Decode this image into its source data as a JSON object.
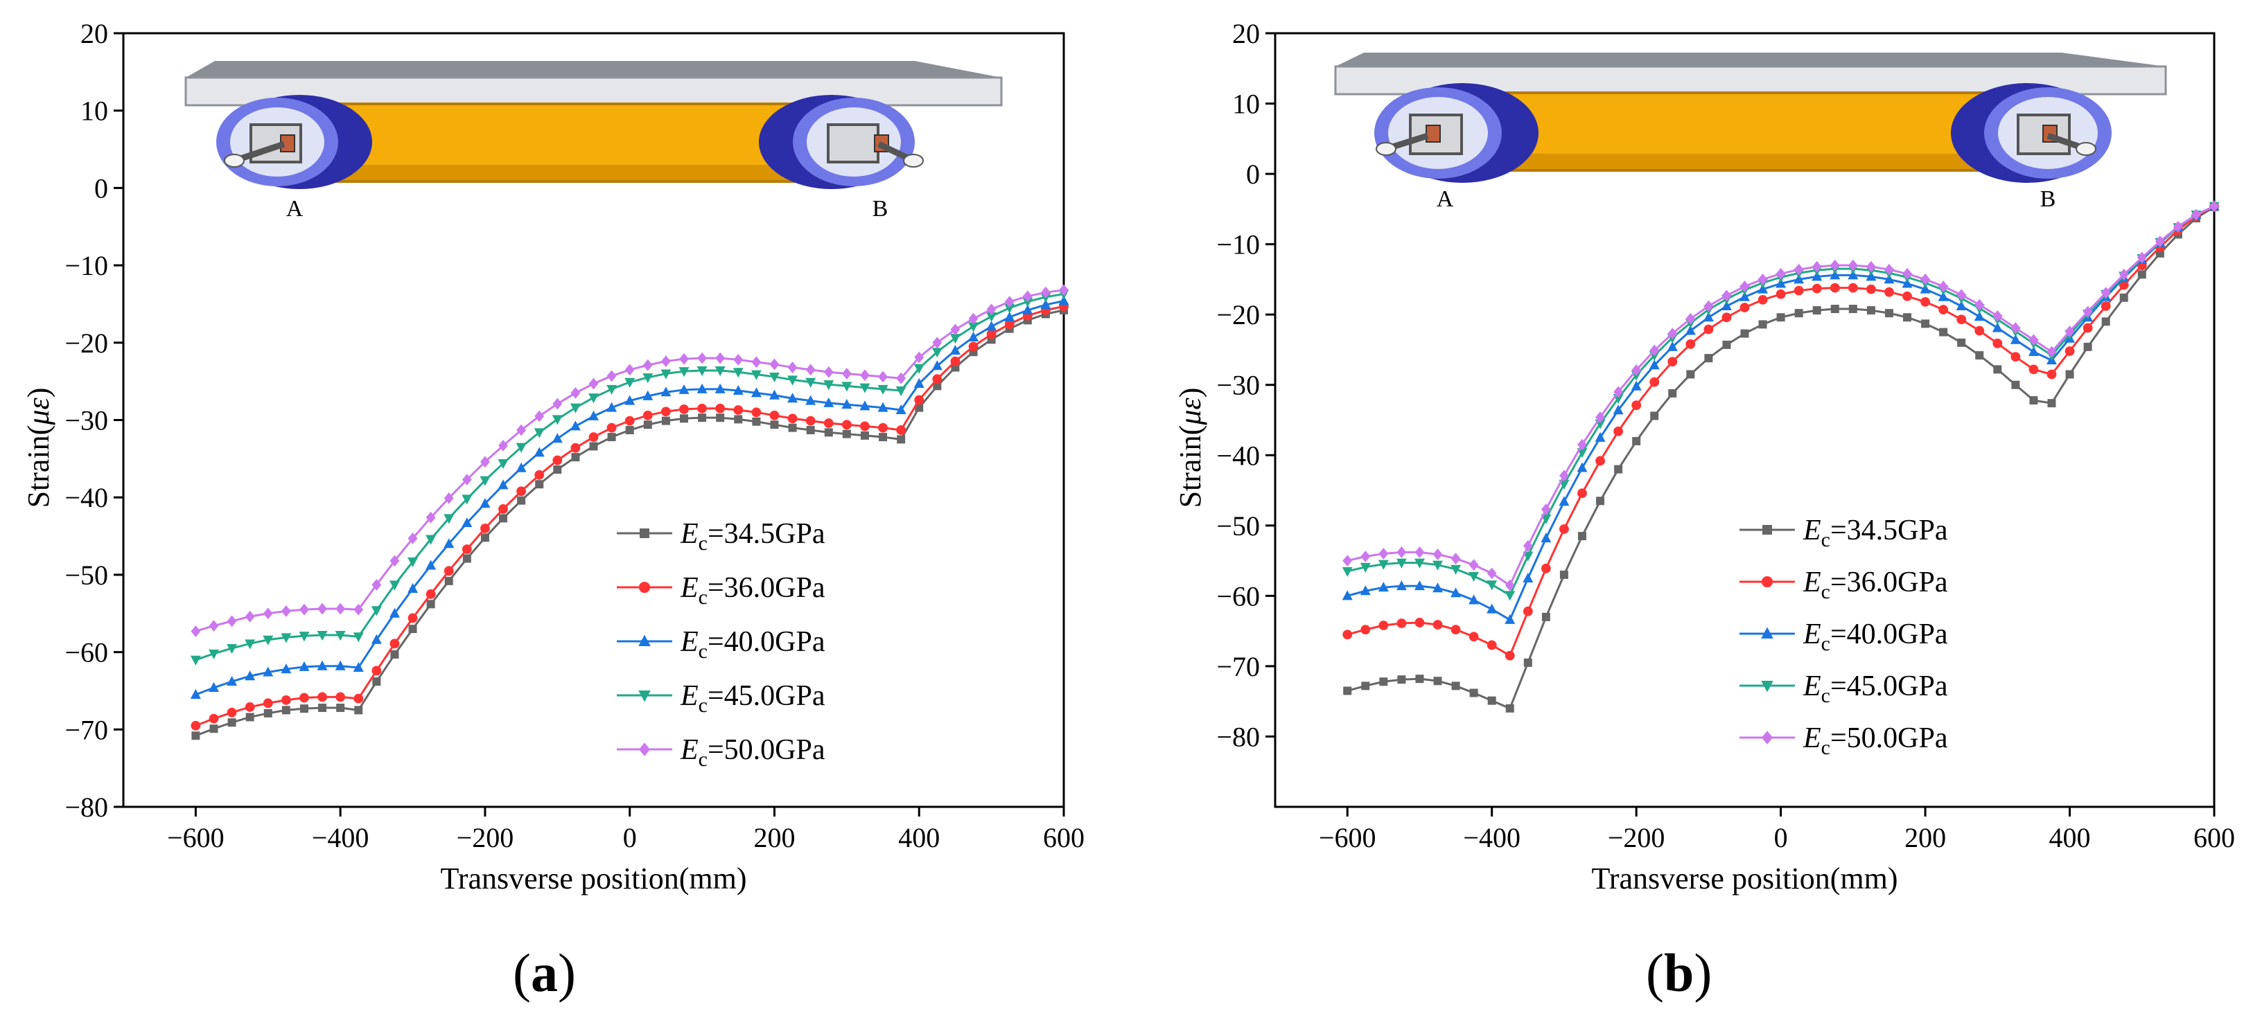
{
  "figure": {
    "panel_labels": [
      {
        "open": "(",
        "letter": "a",
        "close": ")"
      },
      {
        "open": "(",
        "letter": "b",
        "close": ")"
      }
    ],
    "diagram_labels": {
      "left_support": "A",
      "right_support": "B"
    }
  },
  "chart_data": [
    {
      "type": "line",
      "panel": "a",
      "xlabel": "Transverse position(mm)",
      "ylabel": {
        "prefix": "Strain(",
        "symbol": "με",
        "suffix": ")"
      },
      "xlim": [
        -700,
        600
      ],
      "ylim": [
        -80,
        20
      ],
      "xticks": [
        -600,
        -400,
        -200,
        0,
        200,
        400,
        600
      ],
      "yticks": [
        20,
        10,
        0,
        -10,
        -20,
        -30,
        -40,
        -50,
        -60,
        -70,
        -80
      ],
      "xtick_labels": [
        "−600",
        "−400",
        "−200",
        "0",
        "200",
        "400",
        "600"
      ],
      "ytick_labels": [
        "20",
        "10",
        "0",
        "−10",
        "−20",
        "−30",
        "−40",
        "−50",
        "−60",
        "−70",
        "−80"
      ],
      "legend_position": "lower-right",
      "x": [
        -600,
        -575,
        -550,
        -525,
        -500,
        -475,
        -450,
        -425,
        -400,
        -375,
        -350,
        -325,
        -300,
        -275,
        -250,
        -225,
        -200,
        -175,
        -150,
        -125,
        -100,
        -75,
        -50,
        -25,
        0,
        25,
        50,
        75,
        100,
        125,
        150,
        175,
        200,
        225,
        250,
        275,
        300,
        325,
        350,
        375,
        400,
        425,
        450,
        475,
        500,
        525,
        550,
        575,
        600
      ],
      "series": [
        {
          "name": "E_c=34.5GPa",
          "label_sym": "E",
          "label_sub": "c",
          "label_rest": "=34.5GPa",
          "color": "#666666",
          "marker": "square",
          "values": [
            -70.8,
            -69.9,
            -69.1,
            -68.4,
            -67.9,
            -67.5,
            -67.3,
            -67.2,
            -67.2,
            -67.5,
            -63.8,
            -60.3,
            -57.0,
            -53.8,
            -50.8,
            -47.9,
            -45.2,
            -42.7,
            -40.4,
            -38.3,
            -36.4,
            -34.8,
            -33.4,
            -32.2,
            -31.3,
            -30.6,
            -30.1,
            -29.8,
            -29.7,
            -29.7,
            -29.9,
            -30.2,
            -30.6,
            -31.0,
            -31.3,
            -31.6,
            -31.8,
            -32.0,
            -32.2,
            -32.5,
            -28.4,
            -25.6,
            -23.2,
            -21.2,
            -19.6,
            -18.2,
            -17.1,
            -16.3,
            -15.8
          ]
        },
        {
          "name": "E_c=36.0GPa",
          "label_sym": "E",
          "label_sub": "c",
          "label_rest": "=36.0GPa",
          "color": "#ff3333",
          "marker": "circle",
          "values": [
            -69.5,
            -68.6,
            -67.8,
            -67.1,
            -66.6,
            -66.2,
            -65.9,
            -65.8,
            -65.8,
            -66.0,
            -62.4,
            -58.9,
            -55.6,
            -52.5,
            -49.5,
            -46.7,
            -44.0,
            -41.5,
            -39.2,
            -37.1,
            -35.2,
            -33.6,
            -32.2,
            -31.0,
            -30.1,
            -29.4,
            -28.9,
            -28.6,
            -28.5,
            -28.5,
            -28.7,
            -29.0,
            -29.4,
            -29.8,
            -30.1,
            -30.4,
            -30.6,
            -30.8,
            -31.0,
            -31.3,
            -27.4,
            -24.7,
            -22.4,
            -20.5,
            -18.9,
            -17.6,
            -16.5,
            -15.8,
            -15.3
          ]
        },
        {
          "name": "E_c=40.0GPa",
          "label_sym": "E",
          "label_sub": "c",
          "label_rest": "=40.0GPa",
          "color": "#1a75e0",
          "marker": "triangle-up",
          "values": [
            -65.5,
            -64.6,
            -63.8,
            -63.1,
            -62.6,
            -62.2,
            -61.9,
            -61.8,
            -61.8,
            -62.0,
            -58.4,
            -55.0,
            -51.8,
            -48.8,
            -46.0,
            -43.3,
            -40.8,
            -38.4,
            -36.2,
            -34.2,
            -32.4,
            -30.8,
            -29.5,
            -28.4,
            -27.5,
            -26.9,
            -26.4,
            -26.1,
            -26.0,
            -26.0,
            -26.2,
            -26.5,
            -26.8,
            -27.2,
            -27.5,
            -27.8,
            -28.0,
            -28.2,
            -28.4,
            -28.7,
            -25.3,
            -23.0,
            -21.0,
            -19.3,
            -17.9,
            -16.7,
            -15.8,
            -15.1,
            -14.6
          ]
        },
        {
          "name": "E_c=45.0GPa",
          "label_sym": "E",
          "label_sub": "c",
          "label_rest": "=45.0GPa",
          "color": "#22aa88",
          "marker": "triangle-down",
          "values": [
            -61.0,
            -60.2,
            -59.5,
            -58.9,
            -58.4,
            -58.1,
            -57.9,
            -57.8,
            -57.8,
            -58.0,
            -54.6,
            -51.3,
            -48.3,
            -45.4,
            -42.7,
            -40.2,
            -37.8,
            -35.6,
            -33.5,
            -31.6,
            -29.9,
            -28.4,
            -27.1,
            -26.0,
            -25.1,
            -24.5,
            -24.0,
            -23.7,
            -23.6,
            -23.6,
            -23.8,
            -24.1,
            -24.4,
            -24.8,
            -25.1,
            -25.4,
            -25.6,
            -25.8,
            -26.0,
            -26.2,
            -23.3,
            -21.2,
            -19.4,
            -17.9,
            -16.6,
            -15.5,
            -14.7,
            -14.1,
            -13.7
          ]
        },
        {
          "name": "E_c=50.0GPa",
          "label_sym": "E",
          "label_sub": "c",
          "label_rest": "=50.0GPa",
          "color": "#cc77ee",
          "marker": "diamond",
          "values": [
            -57.3,
            -56.6,
            -56.0,
            -55.4,
            -55.0,
            -54.7,
            -54.5,
            -54.4,
            -54.4,
            -54.5,
            -51.3,
            -48.2,
            -45.3,
            -42.6,
            -40.1,
            -37.7,
            -35.4,
            -33.3,
            -31.3,
            -29.5,
            -27.9,
            -26.5,
            -25.3,
            -24.3,
            -23.5,
            -22.9,
            -22.4,
            -22.1,
            -22.0,
            -22.0,
            -22.2,
            -22.5,
            -22.8,
            -23.2,
            -23.5,
            -23.8,
            -24.0,
            -24.2,
            -24.4,
            -24.6,
            -21.9,
            -20.0,
            -18.3,
            -16.9,
            -15.7,
            -14.7,
            -14.0,
            -13.5,
            -13.2
          ]
        }
      ]
    },
    {
      "type": "line",
      "panel": "b",
      "xlabel": "Transverse position(mm)",
      "ylabel": {
        "prefix": "Strain(",
        "symbol": "με",
        "suffix": ")"
      },
      "xlim": [
        -700,
        600
      ],
      "ylim": [
        -90,
        20
      ],
      "xticks": [
        -600,
        -400,
        -200,
        0,
        200,
        400,
        600
      ],
      "yticks": [
        20,
        10,
        0,
        -10,
        -20,
        -30,
        -40,
        -50,
        -60,
        -70,
        -80
      ],
      "xtick_labels": [
        "−600",
        "−400",
        "−200",
        "0",
        "200",
        "400",
        "600"
      ],
      "ytick_labels": [
        "20",
        "10",
        "0",
        "−10",
        "−20",
        "−30",
        "−40",
        "−50",
        "−60",
        "−70",
        "−80"
      ],
      "legend_position": "lower-right",
      "x": [
        -600,
        -575,
        -550,
        -525,
        -500,
        -475,
        -450,
        -425,
        -400,
        -375,
        -350,
        -325,
        -300,
        -275,
        -250,
        -225,
        -200,
        -175,
        -150,
        -125,
        -100,
        -75,
        -50,
        -25,
        0,
        25,
        50,
        75,
        100,
        125,
        150,
        175,
        200,
        225,
        250,
        275,
        300,
        325,
        350,
        375,
        400,
        425,
        450,
        475,
        500,
        525,
        550,
        575,
        600
      ],
      "series": [
        {
          "name": "E_c=34.5GPa",
          "label_sym": "E",
          "label_sub": "c",
          "label_rest": "=34.5GPa",
          "color": "#666666",
          "marker": "square",
          "values": [
            -73.5,
            -72.8,
            -72.2,
            -71.9,
            -71.8,
            -72.1,
            -72.8,
            -73.8,
            -74.9,
            -76.0,
            -69.5,
            -63.0,
            -57.0,
            -51.5,
            -46.5,
            -42.0,
            -38.0,
            -34.4,
            -31.2,
            -28.5,
            -26.2,
            -24.3,
            -22.7,
            -21.4,
            -20.4,
            -19.8,
            -19.4,
            -19.2,
            -19.2,
            -19.4,
            -19.8,
            -20.4,
            -21.3,
            -22.5,
            -24.0,
            -25.8,
            -27.8,
            -30.0,
            -32.2,
            -32.6,
            -28.5,
            -24.6,
            -21.0,
            -17.6,
            -14.3,
            -11.3,
            -8.6,
            -6.3,
            -4.7
          ]
        },
        {
          "name": "E_c=36.0GPa",
          "label_sym": "E",
          "label_sub": "c",
          "label_rest": "=36.0GPa",
          "color": "#ff3333",
          "marker": "circle",
          "values": [
            -65.5,
            -64.8,
            -64.2,
            -63.9,
            -63.8,
            -64.1,
            -64.8,
            -65.8,
            -67.0,
            -68.5,
            -62.2,
            -56.1,
            -50.5,
            -45.4,
            -40.8,
            -36.6,
            -32.9,
            -29.6,
            -26.7,
            -24.2,
            -22.1,
            -20.4,
            -19.0,
            -17.9,
            -17.1,
            -16.6,
            -16.3,
            -16.2,
            -16.2,
            -16.4,
            -16.8,
            -17.4,
            -18.2,
            -19.3,
            -20.7,
            -22.3,
            -24.1,
            -26.0,
            -27.8,
            -28.5,
            -25.2,
            -21.9,
            -18.8,
            -15.8,
            -13.0,
            -10.4,
            -8.0,
            -6.0,
            -4.6
          ]
        },
        {
          "name": "E_c=40.0GPa",
          "label_sym": "E",
          "label_sub": "c",
          "label_rest": "=40.0GPa",
          "color": "#1a75e0",
          "marker": "triangle-up",
          "values": [
            -60.0,
            -59.3,
            -58.8,
            -58.6,
            -58.6,
            -58.9,
            -59.6,
            -60.6,
            -61.9,
            -63.4,
            -57.5,
            -51.8,
            -46.6,
            -41.8,
            -37.5,
            -33.6,
            -30.2,
            -27.2,
            -24.6,
            -22.3,
            -20.4,
            -18.8,
            -17.5,
            -16.4,
            -15.6,
            -15.0,
            -14.6,
            -14.4,
            -14.4,
            -14.6,
            -15.0,
            -15.6,
            -16.4,
            -17.5,
            -18.8,
            -20.3,
            -21.9,
            -23.6,
            -25.3,
            -26.5,
            -23.4,
            -20.4,
            -17.5,
            -14.8,
            -12.2,
            -9.8,
            -7.6,
            -5.8,
            -4.6
          ]
        },
        {
          "name": "E_c=45.0GPa",
          "label_sym": "E",
          "label_sub": "c",
          "label_rest": "=45.0GPa",
          "color": "#22aa88",
          "marker": "triangle-down",
          "values": [
            -56.5,
            -55.9,
            -55.5,
            -55.3,
            -55.3,
            -55.6,
            -56.2,
            -57.2,
            -58.4,
            -59.9,
            -54.3,
            -49.0,
            -44.1,
            -39.6,
            -35.5,
            -31.9,
            -28.6,
            -25.8,
            -23.3,
            -21.2,
            -19.3,
            -17.8,
            -16.5,
            -15.5,
            -14.7,
            -14.1,
            -13.7,
            -13.5,
            -13.5,
            -13.7,
            -14.1,
            -14.7,
            -15.5,
            -16.5,
            -17.7,
            -19.1,
            -20.7,
            -22.4,
            -24.1,
            -25.8,
            -22.8,
            -19.9,
            -17.1,
            -14.5,
            -12.0,
            -9.7,
            -7.6,
            -5.8,
            -4.6
          ]
        },
        {
          "name": "E_c=50.0GPa",
          "label_sym": "E",
          "label_sub": "c",
          "label_rest": "=50.0GPa",
          "color": "#cc77ee",
          "marker": "diamond",
          "values": [
            -55.0,
            -54.4,
            -54.0,
            -53.8,
            -53.8,
            -54.1,
            -54.7,
            -55.6,
            -56.8,
            -58.5,
            -52.9,
            -47.7,
            -42.9,
            -38.5,
            -34.6,
            -31.0,
            -27.9,
            -25.1,
            -22.7,
            -20.6,
            -18.8,
            -17.3,
            -16.0,
            -15.0,
            -14.2,
            -13.6,
            -13.2,
            -13.0,
            -13.0,
            -13.2,
            -13.6,
            -14.2,
            -15.0,
            -16.0,
            -17.2,
            -18.6,
            -20.2,
            -21.9,
            -23.6,
            -25.3,
            -22.4,
            -19.6,
            -16.9,
            -14.3,
            -11.9,
            -9.6,
            -7.5,
            -5.8,
            -4.6
          ]
        }
      ]
    }
  ]
}
